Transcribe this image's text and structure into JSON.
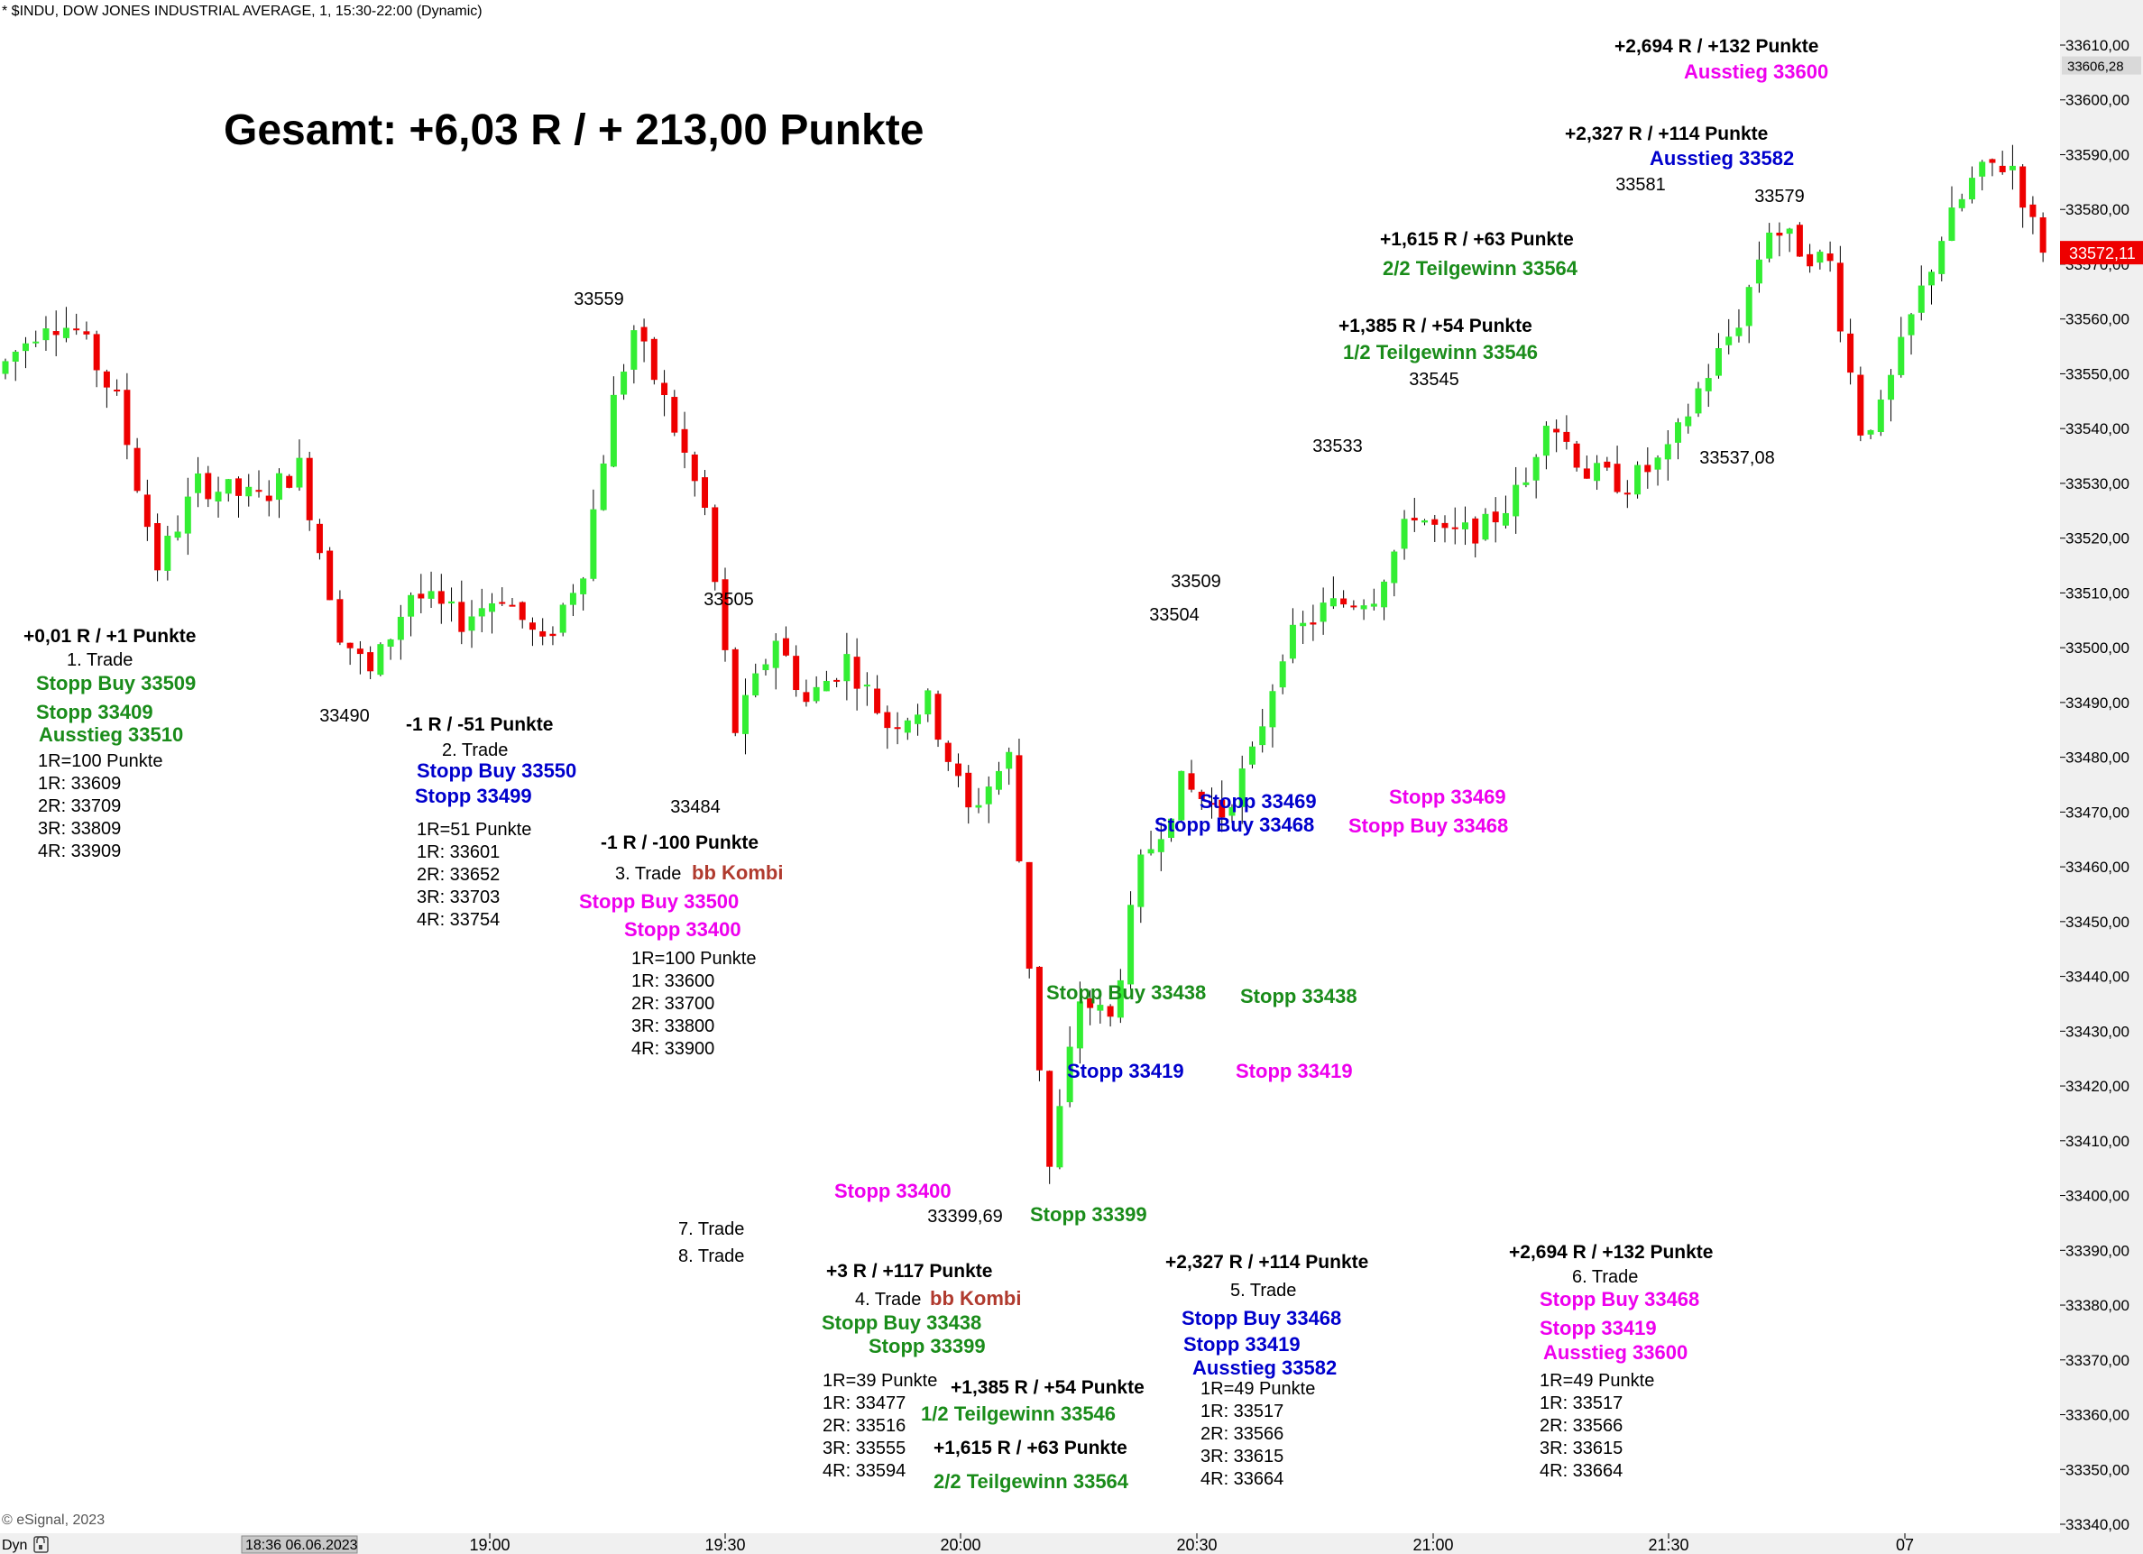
{
  "header": {
    "symbol_line": "* $INDU, DOW JONES INDUSTRIAL AVERAGE, 1, 15:30-22:00 (Dynamic)",
    "copyright": "© eSignal, 2023",
    "dyn_label": "Dyn",
    "crosshair_time": "18:36 06.06.2023"
  },
  "colors": {
    "up": "#33ee33",
    "down": "#ee0000",
    "black": "#000000",
    "green": "#1a8c1a",
    "blue": "#0000cc",
    "magenta": "#ee00ee",
    "brown": "#b03a2e",
    "axis_bg": "#f0f0f0"
  },
  "chart_data": {
    "type": "candlestick",
    "title": "Gesamt: +6,03 R / + 213,00 Punkte",
    "ylim": [
      33340,
      33610
    ],
    "y_ticks": [
      "33610,00",
      "33600,00",
      "33590,00",
      "33580,00",
      "33570,00",
      "33560,00",
      "33550,00",
      "33540,00",
      "33530,00",
      "33520,00",
      "33510,00",
      "33500,00",
      "33490,00",
      "33480,00",
      "33470,00",
      "33460,00",
      "33450,00",
      "33440,00",
      "33430,00",
      "33420,00",
      "33410,00",
      "33400,00",
      "33390,00",
      "33380,00",
      "33370,00",
      "33360,00",
      "33350,00",
      "33340,00"
    ],
    "x_ticks": [
      "19:00",
      "19:30",
      "20:00",
      "20:30",
      "21:00",
      "21:30",
      "07"
    ],
    "last_price": "33572,11",
    "high_label": "33606,28",
    "swing_labels": [
      {
        "text": "33490",
        "bar": 37
      },
      {
        "text": "33559",
        "bar": 63
      },
      {
        "text": "33505",
        "bar": 77
      },
      {
        "text": "33484",
        "bar": 74
      },
      {
        "text": "33399,69",
        "bar": 104
      },
      {
        "text": "33509",
        "bar": 127
      },
      {
        "text": "33504",
        "bar": 124
      },
      {
        "text": "33533",
        "bar": 142
      },
      {
        "text": "33545",
        "bar": 152
      },
      {
        "text": "33581",
        "bar": 175
      },
      {
        "text": "33579",
        "bar": 188
      },
      {
        "text": "33537,08",
        "bar": 184
      }
    ]
  },
  "annotations": [
    {
      "text": "Gesamt: +6,03 R / + 213,00 Punkte",
      "color": "black",
      "size": 48,
      "bold": true,
      "x": 248,
      "y": 160
    },
    {
      "text": "+0,01 R / +1 Punkte",
      "color": "black",
      "size": 21,
      "bold": true,
      "x": 26,
      "y": 712
    },
    {
      "text": "1. Trade",
      "color": "black",
      "size": 20,
      "bold": false,
      "x": 74,
      "y": 738
    },
    {
      "text": "Stopp Buy 33509",
      "color": "green",
      "size": 22,
      "bold": true,
      "x": 40,
      "y": 765
    },
    {
      "text": "Stopp 33409",
      "color": "green",
      "size": 22,
      "bold": true,
      "x": 40,
      "y": 797
    },
    {
      "text": "Ausstieg 33510",
      "color": "green",
      "size": 22,
      "bold": true,
      "x": 43,
      "y": 822
    },
    {
      "text": "1R=100 Punkte",
      "color": "black",
      "size": 20,
      "bold": false,
      "x": 42,
      "y": 850
    },
    {
      "text": "1R: 33609",
      "color": "black",
      "size": 20,
      "bold": false,
      "x": 42,
      "y": 875
    },
    {
      "text": "2R: 33709",
      "color": "black",
      "size": 20,
      "bold": false,
      "x": 42,
      "y": 900
    },
    {
      "text": "3R: 33809",
      "color": "black",
      "size": 20,
      "bold": false,
      "x": 42,
      "y": 925
    },
    {
      "text": "4R: 33909",
      "color": "black",
      "size": 20,
      "bold": false,
      "x": 42,
      "y": 950
    },
    {
      "text": "-1 R / -51 Punkte",
      "color": "black",
      "size": 21,
      "bold": true,
      "x": 450,
      "y": 810
    },
    {
      "text": "2. Trade",
      "color": "black",
      "size": 20,
      "bold": false,
      "x": 490,
      "y": 838
    },
    {
      "text": "Stopp Buy 33550",
      "color": "blue",
      "size": 22,
      "bold": true,
      "x": 462,
      "y": 862
    },
    {
      "text": "Stopp 33499",
      "color": "blue",
      "size": 22,
      "bold": true,
      "x": 460,
      "y": 890
    },
    {
      "text": "1R=51 Punkte",
      "color": "black",
      "size": 20,
      "bold": false,
      "x": 462,
      "y": 926
    },
    {
      "text": "1R: 33601",
      "color": "black",
      "size": 20,
      "bold": false,
      "x": 462,
      "y": 951
    },
    {
      "text": "2R: 33652",
      "color": "black",
      "size": 20,
      "bold": false,
      "x": 462,
      "y": 976
    },
    {
      "text": "3R: 33703",
      "color": "black",
      "size": 20,
      "bold": false,
      "x": 462,
      "y": 1001
    },
    {
      "text": "4R: 33754",
      "color": "black",
      "size": 20,
      "bold": false,
      "x": 462,
      "y": 1026
    },
    {
      "text": "-1 R / -100 Punkte",
      "color": "black",
      "size": 21,
      "bold": true,
      "x": 666,
      "y": 941
    },
    {
      "text": "3. Trade",
      "color": "black",
      "size": 20,
      "bold": false,
      "x": 682,
      "y": 975
    },
    {
      "text": "bb Kombi",
      "color": "brown",
      "size": 22,
      "bold": true,
      "x": 767,
      "y": 975
    },
    {
      "text": "Stopp Buy 33500",
      "color": "magenta",
      "size": 22,
      "bold": true,
      "x": 642,
      "y": 1007
    },
    {
      "text": "Stopp 33400",
      "color": "magenta",
      "size": 22,
      "bold": true,
      "x": 692,
      "y": 1038
    },
    {
      "text": "1R=100 Punkte",
      "color": "black",
      "size": 20,
      "bold": false,
      "x": 700,
      "y": 1069
    },
    {
      "text": "1R: 33600",
      "color": "black",
      "size": 20,
      "bold": false,
      "x": 700,
      "y": 1094
    },
    {
      "text": "2R: 33700",
      "color": "black",
      "size": 20,
      "bold": false,
      "x": 700,
      "y": 1119
    },
    {
      "text": "3R: 33800",
      "color": "black",
      "size": 20,
      "bold": false,
      "x": 700,
      "y": 1144
    },
    {
      "text": "4R: 33900",
      "color": "black",
      "size": 20,
      "bold": false,
      "x": 700,
      "y": 1169
    },
    {
      "text": "Stopp 33400",
      "color": "magenta",
      "size": 22,
      "bold": true,
      "x": 925,
      "y": 1328
    },
    {
      "text": "Stopp 33399",
      "color": "green",
      "size": 22,
      "bold": true,
      "x": 1142,
      "y": 1354
    },
    {
      "text": "7. Trade",
      "color": "black",
      "size": 20,
      "bold": false,
      "x": 752,
      "y": 1369
    },
    {
      "text": "8. Trade",
      "color": "black",
      "size": 20,
      "bold": false,
      "x": 752,
      "y": 1399
    },
    {
      "text": "+3 R / +117 Punkte",
      "color": "black",
      "size": 21,
      "bold": true,
      "x": 916,
      "y": 1416
    },
    {
      "text": "4. Trade",
      "color": "black",
      "size": 20,
      "bold": false,
      "x": 948,
      "y": 1447
    },
    {
      "text": "bb Kombi",
      "color": "brown",
      "size": 22,
      "bold": true,
      "x": 1031,
      "y": 1447
    },
    {
      "text": "Stopp Buy 33438",
      "color": "green",
      "size": 22,
      "bold": true,
      "x": 911,
      "y": 1474
    },
    {
      "text": "Stopp 33399",
      "color": "green",
      "size": 22,
      "bold": true,
      "x": 963,
      "y": 1500
    },
    {
      "text": "1R=39 Punkte",
      "color": "black",
      "size": 20,
      "bold": false,
      "x": 912,
      "y": 1537
    },
    {
      "text": "1R: 33477",
      "color": "black",
      "size": 20,
      "bold": false,
      "x": 912,
      "y": 1562
    },
    {
      "text": "2R: 33516",
      "color": "black",
      "size": 20,
      "bold": false,
      "x": 912,
      "y": 1587
    },
    {
      "text": "3R: 33555",
      "color": "black",
      "size": 20,
      "bold": false,
      "x": 912,
      "y": 1612
    },
    {
      "text": "4R: 33594",
      "color": "black",
      "size": 20,
      "bold": false,
      "x": 912,
      "y": 1637
    },
    {
      "text": "+1,385 R / +54 Punkte",
      "color": "black",
      "size": 21,
      "bold": true,
      "x": 1054,
      "y": 1545
    },
    {
      "text": "1/2 Teilgewinn 33546",
      "color": "green",
      "size": 22,
      "bold": true,
      "x": 1021,
      "y": 1575
    },
    {
      "text": "+1,615 R / +63 Punkte",
      "color": "black",
      "size": 21,
      "bold": true,
      "x": 1035,
      "y": 1612
    },
    {
      "text": "2/2 Teilgewinn 33564",
      "color": "green",
      "size": 22,
      "bold": true,
      "x": 1035,
      "y": 1650
    },
    {
      "text": "Stopp Buy 33438",
      "color": "green",
      "size": 22,
      "bold": true,
      "x": 1160,
      "y": 1108
    },
    {
      "text": "Stopp 33438",
      "color": "green",
      "size": 22,
      "bold": true,
      "x": 1375,
      "y": 1112
    },
    {
      "text": "Stopp 33419",
      "color": "blue",
      "size": 22,
      "bold": true,
      "x": 1183,
      "y": 1195
    },
    {
      "text": "Stopp 33419",
      "color": "magenta",
      "size": 22,
      "bold": true,
      "x": 1370,
      "y": 1195
    },
    {
      "text": "Stopp 33469",
      "color": "blue",
      "size": 22,
      "bold": true,
      "x": 1330,
      "y": 896
    },
    {
      "text": "Stopp Buy 33468",
      "color": "blue",
      "size": 22,
      "bold": true,
      "x": 1280,
      "y": 922
    },
    {
      "text": "Stopp 33469",
      "color": "magenta",
      "size": 22,
      "bold": true,
      "x": 1540,
      "y": 891
    },
    {
      "text": "Stopp Buy 33468",
      "color": "magenta",
      "size": 22,
      "bold": true,
      "x": 1495,
      "y": 923
    },
    {
      "text": "+2,327 R / +114 Punkte",
      "color": "black",
      "size": 21,
      "bold": true,
      "x": 1292,
      "y": 1406
    },
    {
      "text": "5. Trade",
      "color": "black",
      "size": 20,
      "bold": false,
      "x": 1364,
      "y": 1437
    },
    {
      "text": "Stopp Buy 33468",
      "color": "blue",
      "size": 22,
      "bold": true,
      "x": 1310,
      "y": 1469
    },
    {
      "text": "Stopp 33419",
      "color": "blue",
      "size": 22,
      "bold": true,
      "x": 1312,
      "y": 1498
    },
    {
      "text": "Ausstieg 33582",
      "color": "blue",
      "size": 22,
      "bold": true,
      "x": 1322,
      "y": 1524
    },
    {
      "text": "1R=49 Punkte",
      "color": "black",
      "size": 20,
      "bold": false,
      "x": 1331,
      "y": 1546
    },
    {
      "text": "1R: 33517",
      "color": "black",
      "size": 20,
      "bold": false,
      "x": 1331,
      "y": 1571
    },
    {
      "text": "2R: 33566",
      "color": "black",
      "size": 20,
      "bold": false,
      "x": 1331,
      "y": 1596
    },
    {
      "text": "3R: 33615",
      "color": "black",
      "size": 20,
      "bold": false,
      "x": 1331,
      "y": 1621
    },
    {
      "text": "4R: 33664",
      "color": "black",
      "size": 20,
      "bold": false,
      "x": 1331,
      "y": 1646
    },
    {
      "text": "+2,694 R / +132 Punkte",
      "color": "black",
      "size": 21,
      "bold": true,
      "x": 1673,
      "y": 1395
    },
    {
      "text": "6. Trade",
      "color": "black",
      "size": 20,
      "bold": false,
      "x": 1743,
      "y": 1422
    },
    {
      "text": "Stopp Buy 33468",
      "color": "magenta",
      "size": 22,
      "bold": true,
      "x": 1707,
      "y": 1448
    },
    {
      "text": "Stopp 33419",
      "color": "magenta",
      "size": 22,
      "bold": true,
      "x": 1707,
      "y": 1480
    },
    {
      "text": "Ausstieg 33600",
      "color": "magenta",
      "size": 22,
      "bold": true,
      "x": 1711,
      "y": 1507
    },
    {
      "text": "1R=49 Punkte",
      "color": "black",
      "size": 20,
      "bold": false,
      "x": 1707,
      "y": 1537
    },
    {
      "text": "1R: 33517",
      "color": "black",
      "size": 20,
      "bold": false,
      "x": 1707,
      "y": 1562
    },
    {
      "text": "2R: 33566",
      "color": "black",
      "size": 20,
      "bold": false,
      "x": 1707,
      "y": 1587
    },
    {
      "text": "3R: 33615",
      "color": "black",
      "size": 20,
      "bold": false,
      "x": 1707,
      "y": 1612
    },
    {
      "text": "4R: 33664",
      "color": "black",
      "size": 20,
      "bold": false,
      "x": 1707,
      "y": 1637
    },
    {
      "text": "+2,694 R / +132 Punkte",
      "color": "black",
      "size": 21,
      "bold": true,
      "x": 1790,
      "y": 58
    },
    {
      "text": "Ausstieg 33600",
      "color": "magenta",
      "size": 22,
      "bold": true,
      "x": 1867,
      "y": 87
    },
    {
      "text": "+2,327 R / +114 Punkte",
      "color": "black",
      "size": 21,
      "bold": true,
      "x": 1735,
      "y": 155
    },
    {
      "text": "Ausstieg 33582",
      "color": "blue",
      "size": 22,
      "bold": true,
      "x": 1829,
      "y": 183
    },
    {
      "text": "+1,615 R / +63 Punkte",
      "color": "black",
      "size": 21,
      "bold": true,
      "x": 1530,
      "y": 272
    },
    {
      "text": "2/2 Teilgewinn 33564",
      "color": "green",
      "size": 22,
      "bold": true,
      "x": 1533,
      "y": 305
    },
    {
      "text": "+1,385 R / +54 Punkte",
      "color": "black",
      "size": 21,
      "bold": true,
      "x": 1484,
      "y": 368
    },
    {
      "text": "1/2 Teilgewinn 33546",
      "color": "green",
      "size": 22,
      "bold": true,
      "x": 1489,
      "y": 398
    }
  ]
}
